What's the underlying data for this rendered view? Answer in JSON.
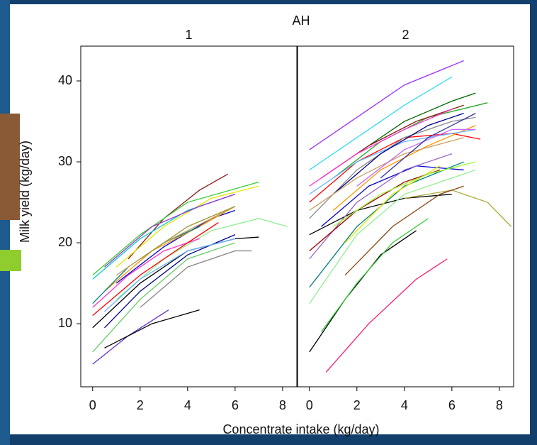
{
  "chart_data": {
    "type": "line",
    "title": "AH",
    "xlabel": "Concentrate intake (kg/day)",
    "ylabel": "Milk yield (kg/day)",
    "xlim": [
      -0.5,
      8.6
    ],
    "xticks": [
      0,
      2,
      4,
      6,
      8
    ],
    "ylim": [
      2.2,
      44.3
    ],
    "yticks": [
      10,
      20,
      30,
      40
    ],
    "panels": [
      {
        "title": "1",
        "series": [
          {
            "color": "#8b1a1a",
            "x": [
              1.5,
              3,
              4.5,
              5.7
            ],
            "values": [
              18,
              23,
              26.5,
              28.5
            ]
          },
          {
            "color": "#33cc33",
            "x": [
              0,
              2,
              4,
              7
            ],
            "values": [
              16,
              21,
              25,
              27.5
            ]
          },
          {
            "color": "#e6e600",
            "x": [
              1,
              3,
              5,
              7
            ],
            "values": [
              17,
              22,
              25.5,
              27
            ]
          },
          {
            "color": "#00cccc",
            "x": [
              0,
              2,
              4,
              6
            ],
            "values": [
              15.5,
              20.5,
              24,
              26
            ]
          },
          {
            "color": "#9933cc",
            "x": [
              0.5,
              2.5,
              4.5,
              6
            ],
            "values": [
              17,
              22,
              24.5,
              26
            ]
          },
          {
            "color": "#0000cc",
            "x": [
              1,
              3,
              5,
              6
            ],
            "values": [
              15,
              19.5,
              23,
              24
            ]
          },
          {
            "color": "#90ee90",
            "x": [
              1,
              3,
              5,
              7,
              8.2
            ],
            "values": [
              13,
              18,
              21.5,
              23,
              22
            ]
          },
          {
            "color": "#000000",
            "x": [
              0,
              2,
              4,
              6,
              7
            ],
            "values": [
              9.5,
              15,
              19,
              20.5,
              20.7
            ]
          },
          {
            "color": "#888888",
            "x": [
              2,
              4,
              6,
              6.7
            ],
            "values": [
              12,
              17,
              19,
              19
            ]
          },
          {
            "color": "#00008b",
            "x": [
              0.5,
              2,
              4,
              6
            ],
            "values": [
              9.5,
              14,
              18.5,
              21
            ]
          },
          {
            "color": "#66cc66",
            "x": [
              0,
              2,
              4,
              6
            ],
            "values": [
              6.5,
              13,
              18,
              20
            ]
          },
          {
            "color": "#ff33cc",
            "x": [
              0,
              1.5,
              3,
              4.5
            ],
            "values": [
              12,
              16,
              19,
              20.5
            ]
          },
          {
            "color": "#ff0000",
            "x": [
              0,
              2,
              4,
              5.3
            ],
            "values": [
              11,
              16,
              20,
              22.5
            ]
          },
          {
            "color": "#ff9900",
            "x": [
              0.5,
              2.5,
              4.5,
              6
            ],
            "values": [
              14,
              19,
              22,
              24.5
            ]
          },
          {
            "color": "#6633cc",
            "x": [
              0,
              1.5,
              3.2
            ],
            "values": [
              5,
              8.5,
              11.7
            ]
          },
          {
            "color": "#000000",
            "x": [
              0.5,
              2.5,
              4.5
            ],
            "values": [
              7,
              10,
              11.7
            ]
          },
          {
            "color": "#008080",
            "x": [
              0,
              1.5,
              3,
              4.5
            ],
            "values": [
              12.5,
              17,
              20,
              22
            ]
          },
          {
            "color": "#c8a060",
            "x": [
              1,
              3,
              5,
              6
            ],
            "values": [
              16,
              20,
              23,
              24.5
            ]
          },
          {
            "color": "#66b3ff",
            "x": [
              0.5,
              2,
              4,
              6
            ],
            "values": [
              11.5,
              15.5,
              19,
              20.5
            ]
          },
          {
            "color": "#999933",
            "x": [
              2,
              4,
              6
            ],
            "values": [
              18,
              22,
              24.5
            ]
          }
        ]
      },
      {
        "title": "2",
        "series": [
          {
            "color": "#9933ff",
            "x": [
              0,
              2,
              4,
              6.5
            ],
            "values": [
              31.5,
              35.5,
              39.5,
              42.5
            ]
          },
          {
            "color": "#33ddee",
            "x": [
              0,
              2,
              4,
              6
            ],
            "values": [
              29,
              33,
              37,
              40.5
            ]
          },
          {
            "color": "#006600",
            "x": [
              2,
              4,
              6,
              7
            ],
            "values": [
              31,
              35,
              37.5,
              38.5
            ]
          },
          {
            "color": "#22aa22",
            "x": [
              1,
              3,
              5,
              7.5
            ],
            "values": [
              28,
              32.5,
              35.5,
              37.3
            ]
          },
          {
            "color": "#8b1a1a",
            "x": [
              0.5,
              2.5,
              4.5,
              6.5
            ],
            "values": [
              28,
              32,
              35,
              37
            ]
          },
          {
            "color": "#ff33cc",
            "x": [
              0,
              2,
              4,
              6
            ],
            "values": [
              27,
              31,
              34,
              36.5
            ]
          },
          {
            "color": "#ff0000",
            "x": [
              0,
              2,
              4,
              6,
              7.2
            ],
            "values": [
              25,
              30,
              33,
              33.5,
              32.8
            ]
          },
          {
            "color": "#ff9900",
            "x": [
              1,
              3,
              5,
              7
            ],
            "values": [
              24,
              29,
              32,
              34.5
            ]
          },
          {
            "color": "#0000cc",
            "x": [
              0.5,
              2.5,
              4.5,
              6.5
            ],
            "values": [
              22,
              27,
              29.5,
              29
            ]
          },
          {
            "color": "#000000",
            "x": [
              0,
              2,
              4,
              6
            ],
            "values": [
              21,
              24,
              25.5,
              26
            ]
          },
          {
            "color": "#aaaa33",
            "x": [
              4,
              6,
              7.5,
              8.5
            ],
            "values": [
              25.5,
              26.5,
              25,
              22
            ]
          },
          {
            "color": "#8b4513",
            "x": [
              1.5,
              3.5,
              5.5,
              6.5
            ],
            "values": [
              16,
              22,
              26,
              27
            ]
          },
          {
            "color": "#000000",
            "x": [
              0,
              1.5,
              3,
              4.5
            ],
            "values": [
              6.5,
              13,
              18.5,
              21.5
            ]
          },
          {
            "color": "#ff1a75",
            "x": [
              0.7,
              2.5,
              4.5,
              5.8
            ],
            "values": [
              4,
              10,
              15.5,
              18
            ]
          },
          {
            "color": "#33cc33",
            "x": [
              0.5,
              2,
              3.5,
              5
            ],
            "values": [
              9,
              15,
              20,
              23
            ]
          },
          {
            "color": "#90ee90",
            "x": [
              0,
              2,
              4,
              6,
              7
            ],
            "values": [
              12.5,
              21,
              26,
              28,
              29
            ]
          },
          {
            "color": "#008080",
            "x": [
              0,
              2,
              4,
              6.5
            ],
            "values": [
              14.5,
              22,
              27,
              30
            ]
          },
          {
            "color": "#9966cc",
            "x": [
              0,
              2,
              4,
              6
            ],
            "values": [
              18,
              25,
              29,
              31
            ]
          },
          {
            "color": "#888888",
            "x": [
              0,
              2,
              4,
              6,
              7
            ],
            "values": [
              23,
              29,
              33,
              35,
              35.5
            ]
          },
          {
            "color": "#e6e600",
            "x": [
              1.5,
              3.5,
              5.5
            ],
            "values": [
              20,
              26,
              29.5
            ]
          },
          {
            "color": "#66b3ff",
            "x": [
              0,
              2,
              4,
              7
            ],
            "values": [
              26,
              30,
              32.5,
              34
            ]
          },
          {
            "color": "#00008b",
            "x": [
              1,
              3,
              5,
              6.5
            ],
            "values": [
              26,
              31,
              34.5,
              36
            ]
          },
          {
            "color": "#c8a060",
            "x": [
              0,
              2,
              4,
              6.5
            ],
            "values": [
              24,
              28,
              31,
              33
            ]
          },
          {
            "color": "#cc66ff",
            "x": [
              2,
              4,
              6,
              7
            ],
            "values": [
              27,
              31.5,
              34,
              34
            ]
          },
          {
            "color": "#a00000",
            "x": [
              0,
              2,
              4,
              5.5
            ],
            "values": [
              19,
              24,
              27.5,
              29
            ]
          },
          {
            "color": "#99ff33",
            "x": [
              1,
              3,
              5,
              7
            ],
            "values": [
              22,
              26,
              28.5,
              30
            ]
          },
          {
            "color": "#3333aa",
            "x": [
              3,
              5,
              7
            ],
            "values": [
              28,
              33,
              36
            ]
          }
        ]
      }
    ]
  }
}
